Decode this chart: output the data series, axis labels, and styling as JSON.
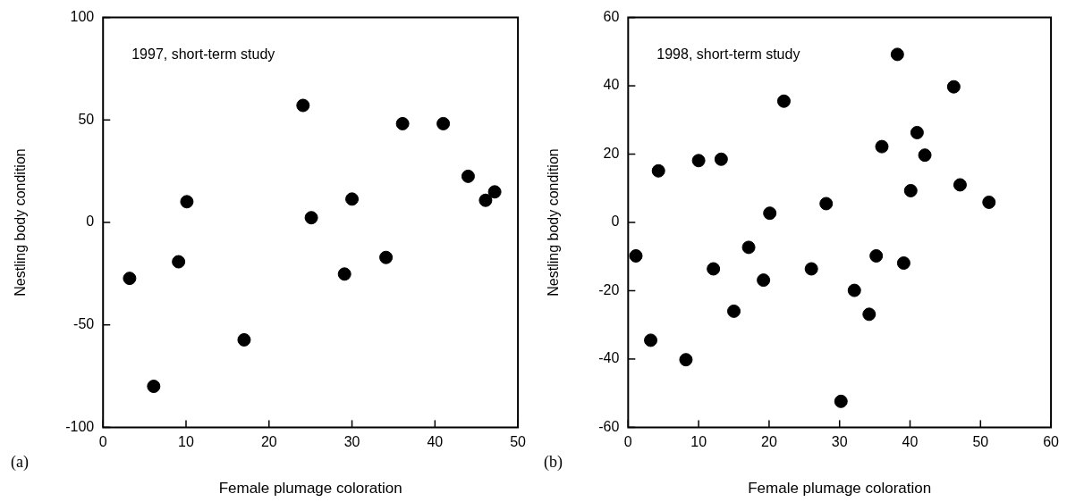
{
  "chart_data": [
    {
      "type": "scatter",
      "title": "1997, short-term study",
      "xlabel": "Female plumage coloration",
      "ylabel": "Nestling body condition",
      "annotations": [
        "(a)"
      ],
      "x": [
        3.2,
        6.1,
        9.1,
        10.1,
        17.0,
        24.1,
        25.1,
        29.1,
        30.0,
        34.1,
        36.1,
        41.0,
        44.0,
        46.1,
        47.2
      ],
      "values": [
        -27.3,
        -80,
        -19.2,
        10.1,
        -57.3,
        57.1,
        2.3,
        -25.2,
        11.4,
        -17.1,
        48.2,
        48.2,
        22.5,
        10.8,
        14.9
      ],
      "color": "#000000",
      "marker": "circle",
      "grid": false,
      "legend": false,
      "xlim": [
        0,
        50
      ],
      "xticks": [
        0,
        10,
        20,
        30,
        40,
        50
      ],
      "ylim": [
        -100,
        100
      ],
      "yticks": [
        -100,
        -50,
        0,
        50,
        100
      ]
    },
    {
      "type": "scatter",
      "title": "1998, short-term study",
      "xlabel": "Female plumage coloration",
      "ylabel": "Nestling body condition",
      "annotations": [
        "(b)"
      ],
      "x": [
        1.1,
        3.2,
        4.3,
        8.2,
        10.0,
        13.2,
        12.1,
        15.0,
        17.1,
        19.2,
        20.1,
        22.1,
        26.0,
        28.1,
        30.2,
        32.1,
        34.2,
        35.2,
        36.0,
        38.2,
        39.1,
        40.1,
        41.0,
        42.1,
        46.2,
        47.1,
        51.2
      ],
      "values": [
        -9.8,
        -34.5,
        15.1,
        -40.2,
        18.1,
        18.5,
        -13.6,
        -26.0,
        -7.3,
        -16.9,
        2.7,
        35.5,
        -13.6,
        5.5,
        -52.4,
        -19.9,
        -26.9,
        -9.8,
        22.2,
        49.2,
        -11.9,
        9.3,
        26.3,
        19.7,
        39.7,
        11.0,
        5.9
      ],
      "color": "#000000",
      "marker": "circle",
      "grid": false,
      "legend": false,
      "xlim": [
        0,
        60
      ],
      "xticks": [
        0,
        10,
        20,
        30,
        40,
        50,
        60
      ],
      "ylim": [
        -60,
        60
      ],
      "yticks": [
        -60,
        -40,
        -20,
        0,
        20,
        40,
        60
      ]
    }
  ]
}
